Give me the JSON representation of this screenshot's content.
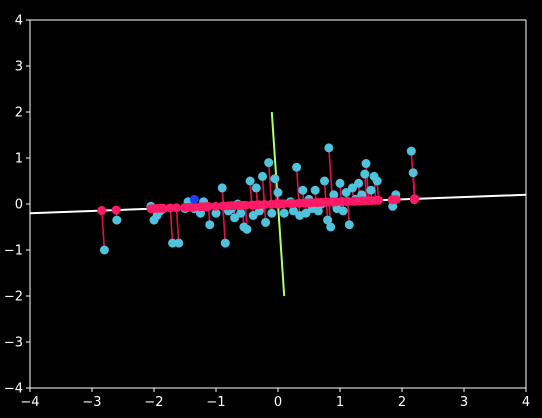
{
  "chart_data": {
    "type": "scatter",
    "title": "",
    "xlabel": "",
    "ylabel": "",
    "xlim": [
      -4,
      4
    ],
    "ylim": [
      -4,
      4
    ],
    "grid": false,
    "legend": "none",
    "background": "#000000",
    "axis_color": "#ffffff",
    "x_ticks": [
      -4,
      -3,
      -2,
      -1,
      0,
      1,
      2,
      3,
      4
    ],
    "y_ticks": [
      -4,
      -3,
      -2,
      -1,
      0,
      1,
      2,
      3,
      4
    ],
    "x_tick_labels": [
      "−4",
      "−3",
      "−2",
      "−1",
      "0",
      "1",
      "2",
      "3",
      "4"
    ],
    "y_tick_labels": [
      "−4",
      "−3",
      "−2",
      "−1",
      "0",
      "1",
      "2",
      "3",
      "4"
    ],
    "principal_axis": {
      "color": "#ffffff",
      "slope": 0.05,
      "intercept": 0.0
    },
    "secondary_axis": {
      "color": "#adff6b",
      "from": [
        -0.1,
        2.0
      ],
      "to": [
        0.1,
        -2.0
      ]
    },
    "colors": {
      "points": "#4fc3dc",
      "projections": "#ff1a66",
      "connectors": "#e0104f",
      "highlight": "#1f3cff"
    },
    "points": [
      [
        -2.8,
        -1.0
      ],
      [
        -2.6,
        -0.35
      ],
      [
        -2.05,
        -0.05
      ],
      [
        -2.0,
        -0.35
      ],
      [
        -1.95,
        -0.25
      ],
      [
        -1.9,
        -0.15
      ],
      [
        -1.85,
        -0.1
      ],
      [
        -1.7,
        -0.85
      ],
      [
        -1.6,
        -0.85
      ],
      [
        -1.5,
        -0.1
      ],
      [
        -1.45,
        0.05
      ],
      [
        -1.4,
        -0.05
      ],
      [
        -1.35,
        -0.1
      ],
      [
        -1.25,
        -0.2
      ],
      [
        -1.2,
        0.05
      ],
      [
        -1.15,
        -0.05
      ],
      [
        -1.1,
        -0.45
      ],
      [
        -1.0,
        -0.2
      ],
      [
        -0.9,
        0.35
      ],
      [
        -0.85,
        -0.85
      ],
      [
        -0.8,
        -0.15
      ],
      [
        -0.75,
        -0.1
      ],
      [
        -0.7,
        -0.3
      ],
      [
        -0.65,
        0.0
      ],
      [
        -0.6,
        -0.2
      ],
      [
        -0.55,
        -0.5
      ],
      [
        -0.5,
        -0.55
      ],
      [
        -0.45,
        0.5
      ],
      [
        -0.4,
        -0.25
      ],
      [
        -0.35,
        0.35
      ],
      [
        -0.3,
        -0.15
      ],
      [
        -0.25,
        0.6
      ],
      [
        -0.2,
        -0.4
      ],
      [
        -0.15,
        0.9
      ],
      [
        -0.1,
        -0.2
      ],
      [
        -0.05,
        0.55
      ],
      [
        0.0,
        0.25
      ],
      [
        0.05,
        0.0
      ],
      [
        0.1,
        -0.2
      ],
      [
        0.2,
        0.05
      ],
      [
        0.25,
        -0.15
      ],
      [
        0.3,
        0.8
      ],
      [
        0.35,
        -0.25
      ],
      [
        0.4,
        0.3
      ],
      [
        0.45,
        -0.2
      ],
      [
        0.5,
        0.1
      ],
      [
        0.55,
        -0.1
      ],
      [
        0.6,
        0.3
      ],
      [
        0.65,
        -0.15
      ],
      [
        0.7,
        0.0
      ],
      [
        0.75,
        0.5
      ],
      [
        0.8,
        -0.35
      ],
      [
        0.82,
        1.22
      ],
      [
        0.85,
        -0.5
      ],
      [
        0.9,
        0.2
      ],
      [
        0.95,
        -0.1
      ],
      [
        1.0,
        0.45
      ],
      [
        1.05,
        -0.15
      ],
      [
        1.1,
        0.25
      ],
      [
        1.15,
        -0.45
      ],
      [
        1.2,
        0.35
      ],
      [
        1.25,
        0.1
      ],
      [
        1.3,
        0.45
      ],
      [
        1.35,
        0.2
      ],
      [
        1.4,
        0.65
      ],
      [
        1.42,
        0.88
      ],
      [
        1.5,
        0.3
      ],
      [
        1.55,
        0.6
      ],
      [
        1.6,
        0.5
      ],
      [
        1.85,
        -0.05
      ],
      [
        1.9,
        0.2
      ],
      [
        2.15,
        1.15
      ],
      [
        2.18,
        0.68
      ],
      [
        2.2,
        0.1
      ]
    ],
    "highlight_point": [
      -1.35,
      0.1
    ]
  }
}
